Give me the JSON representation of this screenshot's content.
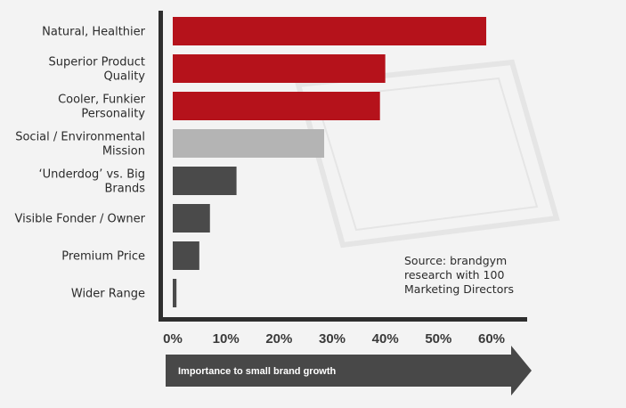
{
  "chart_data": {
    "type": "bar",
    "orientation": "horizontal",
    "categories": [
      [
        "Natural, Healthier"
      ],
      [
        "Superior Product",
        "Quality"
      ],
      [
        "Cooler, Funkier",
        "Personality"
      ],
      [
        "Social / Environmental",
        "Mission"
      ],
      [
        "‘Underdog’ vs. Big",
        "Brands"
      ],
      [
        "Visible Fonder / Owner"
      ],
      [
        "Premium Price"
      ],
      [
        "Wider Range"
      ]
    ],
    "values": [
      59,
      40,
      39,
      28.5,
      12,
      7,
      5,
      0.7
    ],
    "bar_colors": [
      "#b5121b",
      "#b5121b",
      "#b5121b",
      "#b4b4b4",
      "#4a4a4a",
      "#4a4a4a",
      "#4a4a4a",
      "#4a4a4a"
    ],
    "xlim": [
      0,
      66
    ],
    "xticks": [
      0,
      10,
      20,
      30,
      40,
      50,
      60
    ],
    "xtick_labels": [
      "0%",
      "10%",
      "20%",
      "30%",
      "40%",
      "50%",
      "60%"
    ],
    "xlabel": "Importance to small brand growth",
    "annotation": [
      "Source: brandgym",
      "research with 100",
      "Marketing Directors"
    ],
    "grid": false
  }
}
